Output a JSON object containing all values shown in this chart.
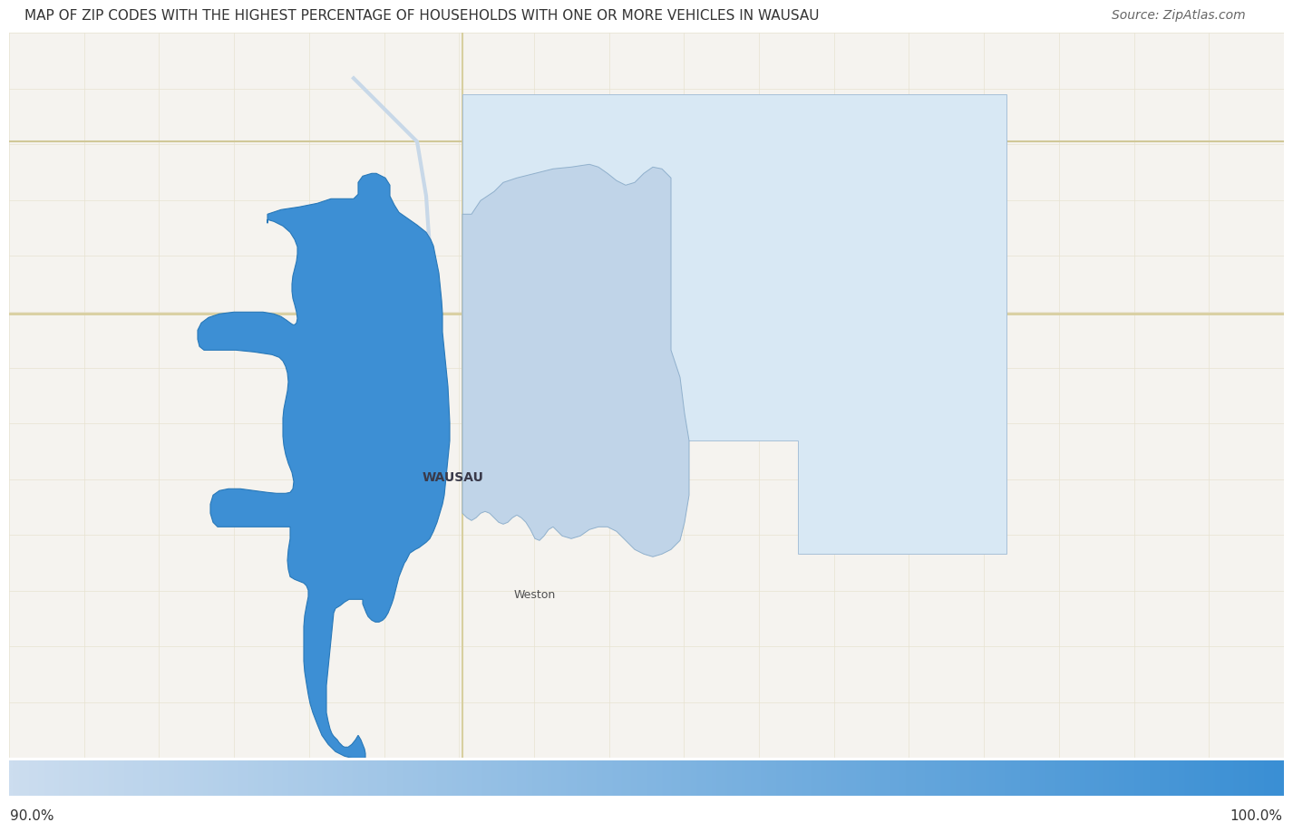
{
  "title": "MAP OF ZIP CODES WITH THE HIGHEST PERCENTAGE OF HOUSEHOLDS WITH ONE OR MORE VEHICLES IN WAUSAU",
  "source": "Source: ZipAtlas.com",
  "colorbar_min": "90.0%",
  "colorbar_max": "100.0%",
  "background_color": "#ffffff",
  "title_fontsize": 11.0,
  "source_fontsize": 10,
  "colorbar_label_fontsize": 11,
  "colorbar_color_start": "#ccddef",
  "colorbar_color_end": "#3a8fd4",
  "wausau_label": "WAUSAU",
  "weston_label": "Weston",
  "bright_blue": "#3d8fd4",
  "light_blue_outer": "#d4e4f2",
  "light_blue_inner": "#bdd0e6",
  "map_bg": "#f5f3ef",
  "road_color_main": "#e8dfc0",
  "road_color_sec": "#ede9de"
}
